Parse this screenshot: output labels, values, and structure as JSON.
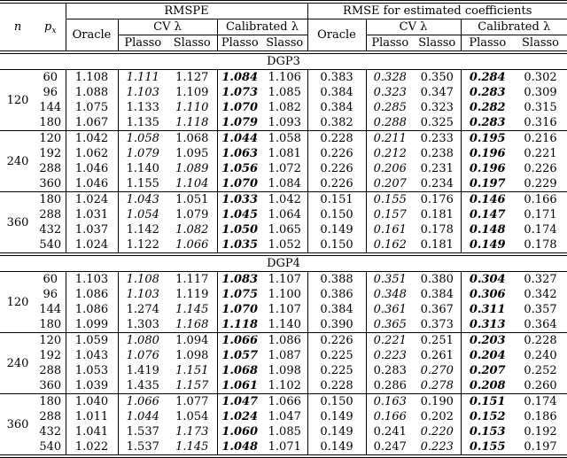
{
  "table": {
    "header": {
      "n": "n",
      "px_base": "p",
      "px_sub": "x",
      "rmspe": "RMSPE",
      "rmse": "RMSE for estimated coefficients",
      "oracle": "Oracle",
      "cv": "CV λ",
      "calibrated": "Calibrated λ",
      "plasso": "Plasso",
      "slasso": "Slasso"
    },
    "value_columns": [
      "Oracle",
      "CV Plasso",
      "CV Slasso",
      "Calibrated Plasso",
      "Calibrated Slasso",
      "Oracle",
      "CV Plasso",
      "CV Slasso",
      "Calibrated Plasso",
      "Calibrated Slasso"
    ],
    "style_legend": {
      "n": "normal",
      "i": "italic",
      "b": "bold-italic"
    },
    "sections": [
      {
        "label": "DGP3",
        "blocks": [
          {
            "n": "120",
            "rows": [
              {
                "px": "60",
                "v": [
                  "1.108",
                  "1.111",
                  "1.127",
                  "1.084",
                  "1.106",
                  "0.383",
                  "0.328",
                  "0.350",
                  "0.284",
                  "0.302"
                ],
                "s": [
                  "n",
                  "i",
                  "n",
                  "b",
                  "n",
                  "n",
                  "i",
                  "n",
                  "b",
                  "n"
                ]
              },
              {
                "px": "96",
                "v": [
                  "1.088",
                  "1.103",
                  "1.109",
                  "1.073",
                  "1.085",
                  "0.384",
                  "0.323",
                  "0.347",
                  "0.283",
                  "0.309"
                ],
                "s": [
                  "n",
                  "i",
                  "n",
                  "b",
                  "n",
                  "n",
                  "i",
                  "n",
                  "b",
                  "n"
                ]
              },
              {
                "px": "144",
                "v": [
                  "1.075",
                  "1.133",
                  "1.110",
                  "1.070",
                  "1.082",
                  "0.384",
                  "0.285",
                  "0.323",
                  "0.282",
                  "0.315"
                ],
                "s": [
                  "n",
                  "n",
                  "i",
                  "b",
                  "n",
                  "n",
                  "i",
                  "n",
                  "b",
                  "n"
                ]
              },
              {
                "px": "180",
                "v": [
                  "1.067",
                  "1.135",
                  "1.118",
                  "1.079",
                  "1.093",
                  "0.382",
                  "0.288",
                  "0.325",
                  "0.283",
                  "0.316"
                ],
                "s": [
                  "n",
                  "n",
                  "i",
                  "b",
                  "n",
                  "n",
                  "i",
                  "n",
                  "b",
                  "n"
                ]
              }
            ]
          },
          {
            "n": "240",
            "rows": [
              {
                "px": "120",
                "v": [
                  "1.042",
                  "1.058",
                  "1.068",
                  "1.044",
                  "1.058",
                  "0.228",
                  "0.211",
                  "0.233",
                  "0.195",
                  "0.216"
                ],
                "s": [
                  "n",
                  "i",
                  "n",
                  "b",
                  "n",
                  "n",
                  "i",
                  "n",
                  "b",
                  "n"
                ]
              },
              {
                "px": "192",
                "v": [
                  "1.062",
                  "1.079",
                  "1.095",
                  "1.063",
                  "1.081",
                  "0.226",
                  "0.212",
                  "0.238",
                  "0.196",
                  "0.221"
                ],
                "s": [
                  "n",
                  "i",
                  "n",
                  "b",
                  "n",
                  "n",
                  "i",
                  "n",
                  "b",
                  "n"
                ]
              },
              {
                "px": "288",
                "v": [
                  "1.046",
                  "1.140",
                  "1.089",
                  "1.056",
                  "1.072",
                  "0.226",
                  "0.206",
                  "0.231",
                  "0.196",
                  "0.226"
                ],
                "s": [
                  "n",
                  "n",
                  "i",
                  "b",
                  "n",
                  "n",
                  "i",
                  "n",
                  "b",
                  "n"
                ]
              },
              {
                "px": "360",
                "v": [
                  "1.046",
                  "1.155",
                  "1.104",
                  "1.070",
                  "1.084",
                  "0.226",
                  "0.207",
                  "0.234",
                  "0.197",
                  "0.229"
                ],
                "s": [
                  "n",
                  "n",
                  "i",
                  "b",
                  "n",
                  "n",
                  "i",
                  "n",
                  "b",
                  "n"
                ]
              }
            ]
          },
          {
            "n": "360",
            "rows": [
              {
                "px": "180",
                "v": [
                  "1.024",
                  "1.043",
                  "1.051",
                  "1.033",
                  "1.042",
                  "0.151",
                  "0.155",
                  "0.176",
                  "0.146",
                  "0.166"
                ],
                "s": [
                  "n",
                  "i",
                  "n",
                  "b",
                  "n",
                  "n",
                  "i",
                  "n",
                  "b",
                  "n"
                ]
              },
              {
                "px": "288",
                "v": [
                  "1.031",
                  "1.054",
                  "1.079",
                  "1.045",
                  "1.064",
                  "0.150",
                  "0.157",
                  "0.181",
                  "0.147",
                  "0.171"
                ],
                "s": [
                  "n",
                  "i",
                  "n",
                  "b",
                  "n",
                  "n",
                  "i",
                  "n",
                  "b",
                  "n"
                ]
              },
              {
                "px": "432",
                "v": [
                  "1.037",
                  "1.142",
                  "1.082",
                  "1.050",
                  "1.065",
                  "0.149",
                  "0.161",
                  "0.178",
                  "0.148",
                  "0.174"
                ],
                "s": [
                  "n",
                  "n",
                  "i",
                  "b",
                  "n",
                  "n",
                  "i",
                  "n",
                  "b",
                  "n"
                ]
              },
              {
                "px": "540",
                "v": [
                  "1.024",
                  "1.122",
                  "1.066",
                  "1.035",
                  "1.052",
                  "0.150",
                  "0.162",
                  "0.181",
                  "0.149",
                  "0.178"
                ],
                "s": [
                  "n",
                  "n",
                  "i",
                  "b",
                  "n",
                  "n",
                  "i",
                  "n",
                  "b",
                  "n"
                ]
              }
            ]
          }
        ]
      },
      {
        "label": "DGP4",
        "blocks": [
          {
            "n": "120",
            "rows": [
              {
                "px": "60",
                "v": [
                  "1.103",
                  "1.108",
                  "1.117",
                  "1.083",
                  "1.107",
                  "0.388",
                  "0.351",
                  "0.380",
                  "0.304",
                  "0.327"
                ],
                "s": [
                  "n",
                  "i",
                  "n",
                  "b",
                  "n",
                  "n",
                  "i",
                  "n",
                  "b",
                  "n"
                ]
              },
              {
                "px": "96",
                "v": [
                  "1.086",
                  "1.103",
                  "1.119",
                  "1.075",
                  "1.100",
                  "0.386",
                  "0.348",
                  "0.384",
                  "0.306",
                  "0.342"
                ],
                "s": [
                  "n",
                  "i",
                  "n",
                  "b",
                  "n",
                  "n",
                  "i",
                  "n",
                  "b",
                  "n"
                ]
              },
              {
                "px": "144",
                "v": [
                  "1.086",
                  "1.274",
                  "1.145",
                  "1.070",
                  "1.107",
                  "0.384",
                  "0.361",
                  "0.367",
                  "0.311",
                  "0.357"
                ],
                "s": [
                  "n",
                  "n",
                  "i",
                  "b",
                  "n",
                  "n",
                  "i",
                  "n",
                  "b",
                  "n"
                ]
              },
              {
                "px": "180",
                "v": [
                  "1.099",
                  "1.303",
                  "1.168",
                  "1.118",
                  "1.140",
                  "0.390",
                  "0.365",
                  "0.373",
                  "0.313",
                  "0.364"
                ],
                "s": [
                  "n",
                  "n",
                  "i",
                  "b",
                  "n",
                  "n",
                  "i",
                  "n",
                  "b",
                  "n"
                ]
              }
            ]
          },
          {
            "n": "240",
            "rows": [
              {
                "px": "120",
                "v": [
                  "1.059",
                  "1.080",
                  "1.094",
                  "1.066",
                  "1.086",
                  "0.226",
                  "0.221",
                  "0.251",
                  "0.203",
                  "0.228"
                ],
                "s": [
                  "n",
                  "i",
                  "n",
                  "b",
                  "n",
                  "n",
                  "i",
                  "n",
                  "b",
                  "n"
                ]
              },
              {
                "px": "192",
                "v": [
                  "1.043",
                  "1.076",
                  "1.098",
                  "1.057",
                  "1.087",
                  "0.225",
                  "0.223",
                  "0.261",
                  "0.204",
                  "0.240"
                ],
                "s": [
                  "n",
                  "i",
                  "n",
                  "b",
                  "n",
                  "n",
                  "i",
                  "n",
                  "b",
                  "n"
                ]
              },
              {
                "px": "288",
                "v": [
                  "1.053",
                  "1.419",
                  "1.151",
                  "1.068",
                  "1.098",
                  "0.225",
                  "0.283",
                  "0.270",
                  "0.207",
                  "0.252"
                ],
                "s": [
                  "n",
                  "n",
                  "i",
                  "b",
                  "n",
                  "n",
                  "n",
                  "i",
                  "b",
                  "n"
                ]
              },
              {
                "px": "360",
                "v": [
                  "1.039",
                  "1.435",
                  "1.157",
                  "1.061",
                  "1.102",
                  "0.228",
                  "0.286",
                  "0.278",
                  "0.208",
                  "0.260"
                ],
                "s": [
                  "n",
                  "n",
                  "i",
                  "b",
                  "n",
                  "n",
                  "n",
                  "i",
                  "b",
                  "n"
                ]
              }
            ]
          },
          {
            "n": "360",
            "rows": [
              {
                "px": "180",
                "v": [
                  "1.040",
                  "1.066",
                  "1.077",
                  "1.047",
                  "1.066",
                  "0.150",
                  "0.163",
                  "0.190",
                  "0.151",
                  "0.174"
                ],
                "s": [
                  "n",
                  "i",
                  "n",
                  "b",
                  "n",
                  "n",
                  "i",
                  "n",
                  "b",
                  "n"
                ]
              },
              {
                "px": "288",
                "v": [
                  "1.011",
                  "1.044",
                  "1.054",
                  "1.024",
                  "1.047",
                  "0.149",
                  "0.166",
                  "0.202",
                  "0.152",
                  "0.186"
                ],
                "s": [
                  "n",
                  "i",
                  "n",
                  "b",
                  "n",
                  "n",
                  "i",
                  "n",
                  "b",
                  "n"
                ]
              },
              {
                "px": "432",
                "v": [
                  "1.041",
                  "1.537",
                  "1.173",
                  "1.060",
                  "1.085",
                  "0.149",
                  "0.241",
                  "0.220",
                  "0.153",
                  "0.192"
                ],
                "s": [
                  "n",
                  "n",
                  "i",
                  "b",
                  "n",
                  "n",
                  "n",
                  "i",
                  "b",
                  "n"
                ]
              },
              {
                "px": "540",
                "v": [
                  "1.022",
                  "1.537",
                  "1.145",
                  "1.048",
                  "1.071",
                  "0.149",
                  "0.247",
                  "0.223",
                  "0.155",
                  "0.197"
                ],
                "s": [
                  "n",
                  "n",
                  "i",
                  "b",
                  "n",
                  "n",
                  "n",
                  "i",
                  "b",
                  "n"
                ]
              }
            ]
          }
        ]
      }
    ]
  }
}
